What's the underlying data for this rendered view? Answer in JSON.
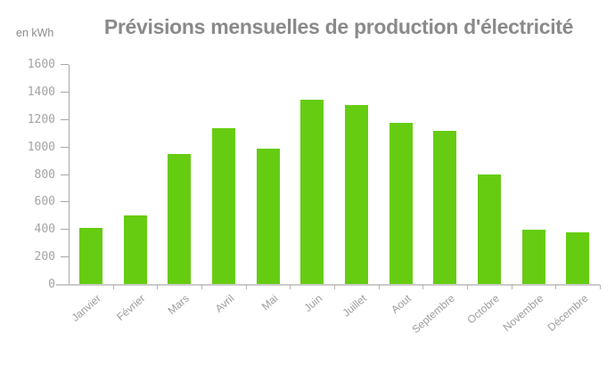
{
  "chart_data": {
    "type": "bar",
    "title": "Prévisions mensuelles de production d'électricité",
    "ylabel": "en kWh",
    "xlabel": "",
    "categories": [
      "Janvier",
      "Février",
      "Mars",
      "Avril",
      "Mai",
      "Juin",
      "Juillet",
      "Aout",
      "Septembre",
      "Octobre",
      "Novembre",
      "Décembre"
    ],
    "values": [
      410,
      505,
      950,
      1140,
      990,
      1345,
      1305,
      1175,
      1115,
      800,
      400,
      380
    ],
    "ylim": [
      0,
      1600
    ],
    "yticks": [
      0,
      200,
      400,
      600,
      800,
      1000,
      1200,
      1400,
      1600
    ],
    "grid": false,
    "legend": null,
    "bar_color": "#66cc11",
    "colors": {
      "bar": "#66cc11",
      "title_text": "#8a8a8a",
      "tick_label_text": "#a3a3a3",
      "month_label_text": "#9e9e9e",
      "x_axis_line": "#cbcbcb",
      "x_tick_mark": "#b5b5b5",
      "y_axis_line": "#a8a8a8",
      "background": "#ffffff"
    }
  }
}
